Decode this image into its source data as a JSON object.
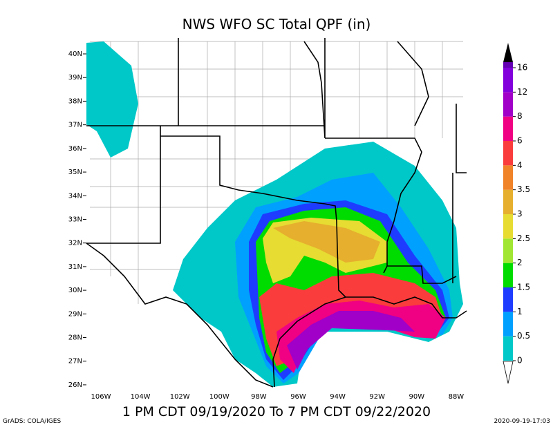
{
  "title": "NWS WFO SC Total QPF (in)",
  "lat_labels": [
    "40N",
    "39N",
    "38N",
    "37N",
    "36N",
    "35N",
    "34N",
    "33N",
    "32N",
    "31N",
    "30N",
    "29N",
    "28N",
    "27N",
    "26N"
  ],
  "lon_labels": [
    "106W",
    "104W",
    "102W",
    "100W",
    "98W",
    "96W",
    "94W",
    "92W",
    "90W",
    "88W"
  ],
  "colorbar": {
    "levels": [
      0,
      0.5,
      1,
      1.5,
      2,
      2.5,
      3,
      3.5,
      4,
      6,
      8,
      12,
      16
    ],
    "colors": [
      "#00c8c8",
      "#00a0ff",
      "#1e3cff",
      "#00dc00",
      "#a0e632",
      "#e6dc32",
      "#e6af2d",
      "#f08228",
      "#fa3c3c",
      "#f00082",
      "#a000c8",
      "#8200dc"
    ]
  },
  "time_range": "1 PM CDT 09/19/2020 To 7 PM CDT 09/22/2020",
  "footer_left": "GrADS: COLA/IGES",
  "footer_right": "2020-09-19-17:03"
}
